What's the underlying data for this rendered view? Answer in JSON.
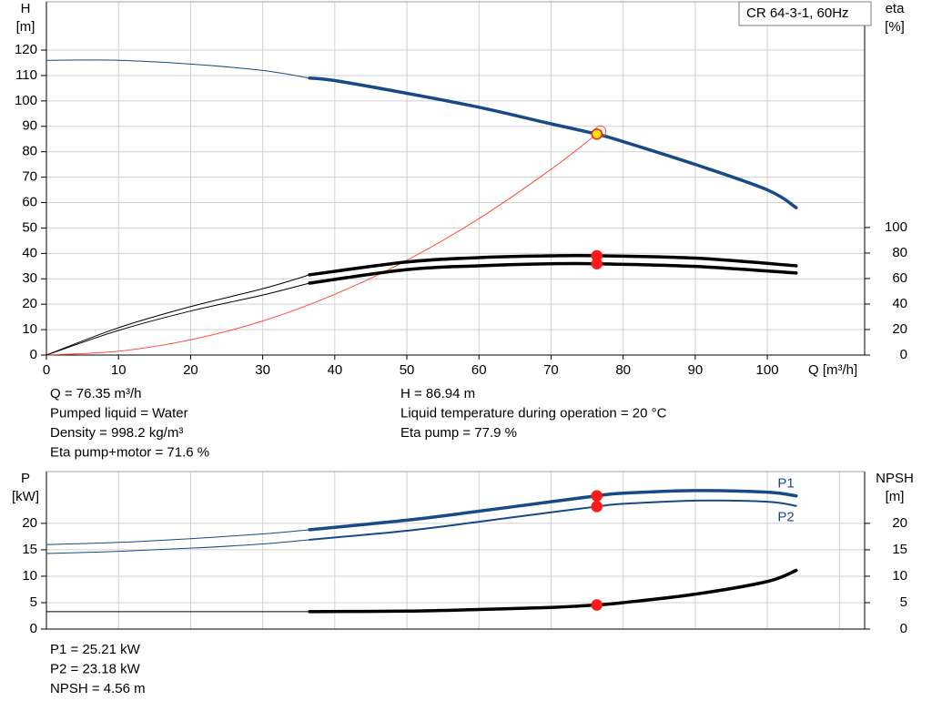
{
  "chart_data": [
    {
      "type": "line",
      "title": "CR 64-3-1, 60Hz",
      "ylabel": [
        "H",
        "[m]"
      ],
      "y2label": [
        "eta",
        "[%]"
      ],
      "xlabel": "Q [m³/h]",
      "xlim": [
        0,
        113.5
      ],
      "ylim": [
        0,
        139
      ],
      "y2lim": [
        0,
        277
      ],
      "xticks": [
        0,
        10,
        20,
        30,
        40,
        50,
        60,
        70,
        80,
        90,
        100
      ],
      "yticks": [
        0,
        10,
        20,
        30,
        40,
        50,
        60,
        70,
        80,
        90,
        100,
        110,
        120
      ],
      "y2ticks": [
        0,
        20,
        40,
        60,
        80,
        100
      ],
      "grid": true,
      "series": [
        {
          "color": "#174a86",
          "width": 1,
          "x": [
            0,
            10,
            20,
            30,
            36.5
          ],
          "values": [
            116,
            116,
            114.5,
            112,
            109
          ]
        },
        {
          "color": "#174a86",
          "width": 3.5,
          "x": [
            36.5,
            40,
            50,
            60,
            70,
            76.35,
            80,
            90,
            100,
            104
          ],
          "values": [
            109,
            108,
            103,
            97.5,
            91,
            86.94,
            84,
            75,
            65,
            58
          ]
        },
        {
          "color": "#ff4a3a",
          "width": 1,
          "x": [
            0,
            10,
            20,
            30,
            40,
            50,
            60,
            70,
            77
          ],
          "values": [
            0,
            1.5,
            6,
            13.4,
            23.9,
            37.3,
            53.7,
            73.1,
            88.4
          ]
        },
        {
          "color": "#000000",
          "width": 1,
          "axis": "y2",
          "x": [
            0,
            10,
            20,
            30,
            36.5
          ],
          "values": [
            0,
            21.4,
            38,
            52,
            62.9
          ]
        },
        {
          "color": "#000000",
          "width": 3.5,
          "axis": "y2",
          "x": [
            36.5,
            50,
            60,
            70,
            76.35,
            90,
            104
          ],
          "values": [
            62.9,
            73,
            76.4,
            77.8,
            77.9,
            76,
            70
          ]
        },
        {
          "color": "#000000",
          "width": 1,
          "axis": "y2",
          "x": [
            0,
            10,
            20,
            30,
            36.5
          ],
          "values": [
            0,
            19.3,
            34.5,
            47,
            56.4
          ]
        },
        {
          "color": "#000000",
          "width": 3.5,
          "axis": "y2",
          "x": [
            36.5,
            50,
            60,
            70,
            76.35,
            90,
            104
          ],
          "values": [
            56.4,
            67,
            70,
            71.6,
            71.6,
            69.5,
            64.3
          ]
        }
      ],
      "points": [
        {
          "x": 76.35,
          "y": 86.94,
          "fill": "#f5e400",
          "stroke": "#e8251e"
        },
        {
          "x": 76.35,
          "y": 77.9,
          "axis": "y2",
          "fill": "#ff1a1a",
          "stroke": "#ff1a1a"
        },
        {
          "x": 76.35,
          "y": 71.6,
          "axis": "y2",
          "fill": "#ff1a1a",
          "stroke": "#ff1a1a"
        }
      ]
    },
    {
      "type": "line",
      "ylabel": [
        "P",
        "[kW]"
      ],
      "y2label": [
        "NPSH",
        "[m]"
      ],
      "xlim": [
        0,
        113.5
      ],
      "ylim": [
        0,
        29.8
      ],
      "y2lim": [
        0,
        29.8
      ],
      "xgrid": [
        0,
        10,
        20,
        30,
        40,
        50,
        60,
        70,
        80,
        90,
        100,
        110
      ],
      "yticks": [
        0,
        5,
        10,
        15,
        20
      ],
      "y2ticks": [
        0,
        5,
        10,
        15,
        20
      ],
      "grid": true,
      "series": [
        {
          "color": "#174a86",
          "width": 1,
          "x": [
            0,
            10,
            20,
            30,
            36.5
          ],
          "values": [
            16.0,
            16.4,
            17.1,
            18.0,
            18.8
          ]
        },
        {
          "name": "P1",
          "color": "#174a86",
          "width": 3.5,
          "x": [
            36.5,
            50,
            60,
            70,
            76.35,
            80,
            90,
            100,
            104
          ],
          "values": [
            18.8,
            20.6,
            22.3,
            24.1,
            25.21,
            25.7,
            26.2,
            25.9,
            25.2
          ]
        },
        {
          "color": "#174a86",
          "width": 1,
          "x": [
            0,
            10,
            20,
            30,
            36.5
          ],
          "values": [
            14.3,
            14.7,
            15.3,
            16.1,
            16.9
          ]
        },
        {
          "name": "P2",
          "color": "#174a86",
          "width": 2,
          "x": [
            36.5,
            50,
            60,
            70,
            76.35,
            80,
            90,
            100,
            104
          ],
          "values": [
            16.9,
            18.6,
            20.3,
            22.1,
            23.18,
            23.7,
            24.3,
            24.1,
            23.3
          ]
        },
        {
          "color": "#000000",
          "width": 1,
          "axis": "y2",
          "x": [
            0,
            36.5
          ],
          "values": [
            3.3,
            3.3
          ]
        },
        {
          "color": "#000000",
          "width": 3.5,
          "axis": "y2",
          "x": [
            36.5,
            50,
            60,
            70,
            76.35,
            80,
            90,
            100,
            104
          ],
          "values": [
            3.3,
            3.4,
            3.7,
            4.1,
            4.56,
            5.0,
            6.6,
            9.0,
            11.1
          ]
        }
      ],
      "points": [
        {
          "x": 76.35,
          "y": 25.21,
          "fill": "#ff1a1a",
          "stroke": "#ff1a1a"
        },
        {
          "x": 76.35,
          "y": 23.18,
          "fill": "#ff1a1a",
          "stroke": "#ff1a1a"
        },
        {
          "x": 76.35,
          "y": 4.56,
          "axis": "y2",
          "fill": "#ff1a1a",
          "stroke": "#ff1a1a"
        }
      ]
    }
  ],
  "info": {
    "top_left": [
      "Q = 76.35 m³/h",
      "Pumped liquid = Water",
      "Density = 998.2 kg/m³",
      "Eta pump+motor = 71.6 %"
    ],
    "top_right": [
      "H = 86.94 m",
      "Liquid temperature during operation = 20 °C",
      "Eta pump = 77.9 %"
    ],
    "bottom": [
      "P1 = 25.21 kW",
      "P2 = 23.18 kW",
      "NPSH = 4.56 m"
    ]
  }
}
